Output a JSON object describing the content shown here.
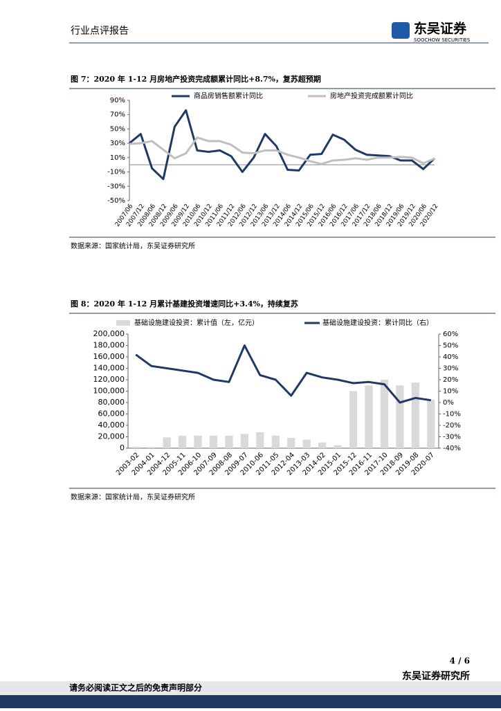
{
  "header": {
    "report_type": "行业点评报告",
    "logo_cn": "东吴证券",
    "logo_en": "SOOCHOW SECURITIES"
  },
  "chart_data": [
    {
      "type": "line",
      "title": "图 7：2020 年 1-12 月房地产投资完成额累计同比+8.7%，复苏超预期",
      "categories": [
        "2007/06",
        "2007/12",
        "2008/06",
        "2008/12",
        "2009/06",
        "2009/12",
        "2010/06",
        "2010/12",
        "2011/06",
        "2011/12",
        "2012/06",
        "2012/12",
        "2013/06",
        "2013/12",
        "2014/06",
        "2014/12",
        "2015/06",
        "2015/12",
        "2016/06",
        "2016/12",
        "2017/06",
        "2017/12",
        "2018/06",
        "2018/12",
        "2019/06",
        "2019/12",
        "2020/06",
        "2020/12"
      ],
      "series": [
        {
          "name": "商品房销售额累计同比",
          "color": "#1f3864",
          "values": [
            30,
            43,
            -5,
            -20,
            53,
            76,
            20,
            18,
            20,
            12,
            -10,
            10,
            43,
            26,
            -7,
            -8,
            14,
            15,
            42,
            35,
            21,
            14,
            13,
            12,
            6,
            6,
            -6,
            9
          ]
        },
        {
          "name": "房地产投资完成额累计同比",
          "color": "#bfbfbf",
          "values": [
            29,
            30,
            33,
            21,
            9,
            16,
            38,
            33,
            33,
            28,
            17,
            16,
            20,
            20,
            14,
            10,
            5,
            1,
            6,
            7,
            9,
            7,
            10,
            10,
            11,
            10,
            2,
            8.7
          ]
        }
      ],
      "ylim": [
        -50,
        90
      ],
      "yticks": [
        {
          "value": -50,
          "label": "-50%"
        },
        {
          "value": -30,
          "label": "-30%"
        },
        {
          "value": -10,
          "label": "-10%"
        },
        {
          "value": 10,
          "label": "10%"
        },
        {
          "value": 30,
          "label": "30%"
        },
        {
          "value": 50,
          "label": "50%"
        },
        {
          "value": 70,
          "label": "70%"
        },
        {
          "value": 90,
          "label": "90%"
        }
      ],
      "legend": "top",
      "source": "数据来源：国家统计局，东吴证券研究所"
    },
    {
      "type": "combo",
      "title": "图 8：2020 年 1-12 月累计基建投资增速同比+3.4%，持续复苏",
      "categories": [
        "2003-02",
        "2004-01",
        "2004-12",
        "2005-11",
        "2006-10",
        "2007-09",
        "2008-08",
        "2009-07",
        "2010-06",
        "2011-05",
        "2012-04",
        "2013-03",
        "2014-02",
        "2015-01",
        "2015-12",
        "2016-11",
        "2017-10",
        "2018-09",
        "2019-08",
        "2020-07"
      ],
      "series": [
        {
          "name": "基础设施建设投资：累计值（左，亿元）",
          "type": "bar",
          "color": "#d9d9d9",
          "values": [
            2500,
            2000,
            19000,
            22000,
            22000,
            22000,
            22000,
            25000,
            28000,
            22000,
            18000,
            15000,
            10000,
            5000,
            100000,
            110000,
            120000,
            110000,
            115000,
            85000
          ]
        },
        {
          "name": "基础设施建设投资：累计同比（右）",
          "type": "line",
          "axis": "y2",
          "color": "#1f3864",
          "values": [
            42,
            32,
            30,
            28,
            26,
            20,
            18,
            50,
            24,
            20,
            6,
            26,
            22,
            20,
            17,
            18,
            16,
            0,
            4,
            2
          ]
        }
      ],
      "ylim": [
        0,
        200000
      ],
      "yticks": [
        0,
        {
          "value": 20000,
          "label": "20,000"
        },
        {
          "value": 40000,
          "label": "40,000"
        },
        {
          "value": 60000,
          "label": "60,000"
        },
        {
          "value": 80000,
          "label": "80,000"
        },
        {
          "value": 100000,
          "label": "100,000"
        },
        {
          "value": 120000,
          "label": "120,000"
        },
        {
          "value": 140000,
          "label": "140,000"
        },
        {
          "value": 160000,
          "label": "160,000"
        },
        {
          "value": 180000,
          "label": "180,000"
        },
        {
          "value": 200000,
          "label": "200,000"
        }
      ],
      "y2lim": [
        -40,
        60
      ],
      "y2ticks": [
        {
          "value": -40,
          "label": "-40%"
        },
        {
          "value": -30,
          "label": "-30%"
        },
        {
          "value": -20,
          "label": "-20%"
        },
        {
          "value": -10,
          "label": "-10%"
        },
        {
          "value": 0,
          "label": "0%"
        },
        {
          "value": 10,
          "label": "10%"
        },
        {
          "value": 20,
          "label": "20%"
        },
        {
          "value": 30,
          "label": "30%"
        },
        {
          "value": 40,
          "label": "40%"
        },
        {
          "value": 50,
          "label": "50%"
        },
        {
          "value": 60,
          "label": "60%"
        }
      ],
      "legend": "top",
      "source": "数据来源：国家统计局，东吴证券研究所"
    }
  ],
  "footer": {
    "page": "4 / 6",
    "org": "东吴证券研究所",
    "disclaimer": "请务必阅读正文之后的免责声明部分"
  }
}
